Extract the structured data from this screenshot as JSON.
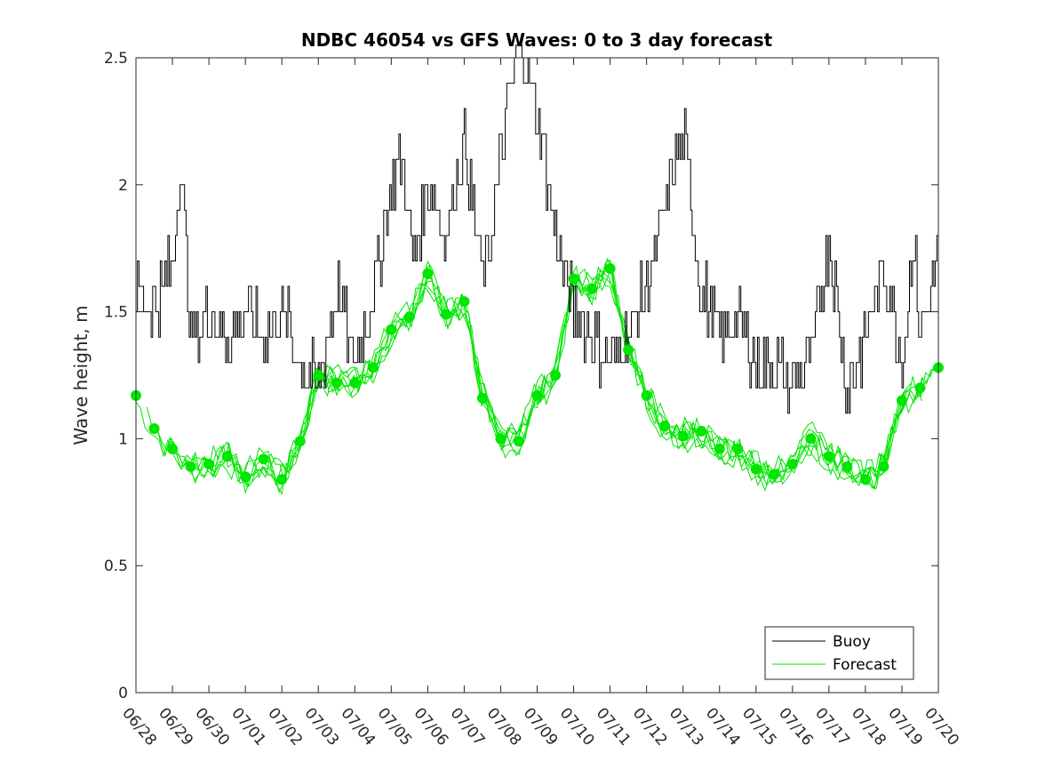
{
  "chart_data": {
    "type": "line",
    "title": "NDBC 46054 vs GFS Waves: 0 to 3 day forecast",
    "xlabel": "",
    "ylabel": "Wave height, m",
    "xlim": [
      "06/28",
      "07/20"
    ],
    "ylim": [
      0,
      2.5
    ],
    "yticks": [
      "0",
      "0.5",
      "1",
      "1.5",
      "2",
      "2.5"
    ],
    "xticks": [
      "06/28",
      "06/29",
      "06/30",
      "07/01",
      "07/02",
      "07/03",
      "07/04",
      "07/05",
      "07/06",
      "07/07",
      "07/08",
      "07/09",
      "07/10",
      "07/11",
      "07/12",
      "07/13",
      "07/14",
      "07/15",
      "07/16",
      "07/17",
      "07/18",
      "07/19",
      "07/20"
    ],
    "grid": false,
    "legend": {
      "placement": "bottom-right",
      "entries": [
        "Buoy",
        "Forecast"
      ]
    },
    "colors": {
      "buoy": "#000000",
      "forecast": "#00e600",
      "axis": "#262626"
    },
    "series": [
      {
        "name": "Buoy",
        "x_days_from_0628": [
          0,
          0.5,
          1,
          1.2,
          1.5,
          2,
          2.5,
          3,
          3.5,
          4,
          4.5,
          5,
          5.5,
          6,
          6.5,
          7,
          7.3,
          7.6,
          8,
          8.5,
          9,
          9.5,
          10,
          10.5,
          11,
          11.5,
          12,
          12.5,
          13,
          13.5,
          14,
          14.5,
          15,
          15.5,
          16,
          16.5,
          17,
          17.5,
          18,
          18.5,
          19,
          19.5,
          20,
          20.5,
          21,
          21.3,
          21.5,
          21.8,
          22
        ],
        "values": [
          1.6,
          1.5,
          1.7,
          2.1,
          1.4,
          1.5,
          1.4,
          1.5,
          1.4,
          1.5,
          1.3,
          1.2,
          1.6,
          1.3,
          1.6,
          2.0,
          2.1,
          1.7,
          2.0,
          1.8,
          2.2,
          1.6,
          2.1,
          2.6,
          2.3,
          1.8,
          1.5,
          1.4,
          1.3,
          1.4,
          1.6,
          1.9,
          2.2,
          1.6,
          1.4,
          1.5,
          1.3,
          1.3,
          1.2,
          1.3,
          1.8,
          1.2,
          1.4,
          1.7,
          1.3,
          1.8,
          1.4,
          1.6,
          1.8
        ]
      },
      {
        "name": "Forecast",
        "x_days_from_0628": [
          0,
          0.5,
          1,
          1.5,
          2,
          2.5,
          3,
          3.5,
          4,
          4.5,
          5,
          5.5,
          6,
          6.5,
          7,
          7.5,
          8,
          8.5,
          9,
          9.5,
          10,
          10.5,
          11,
          11.5,
          12,
          12.5,
          13,
          13.5,
          14,
          14.5,
          15,
          15.5,
          16,
          16.5,
          17,
          17.5,
          18,
          18.5,
          19,
          19.5,
          20,
          20.5,
          21,
          21.5,
          22
        ],
        "values": [
          1.17,
          1.04,
          0.96,
          0.89,
          0.9,
          0.93,
          0.85,
          0.92,
          0.84,
          0.99,
          1.25,
          1.22,
          1.22,
          1.28,
          1.43,
          1.48,
          1.65,
          1.49,
          1.54,
          1.16,
          1.0,
          0.99,
          1.17,
          1.25,
          1.63,
          1.59,
          1.67,
          1.35,
          1.17,
          1.05,
          1.01,
          1.03,
          0.96,
          0.96,
          0.88,
          0.86,
          0.9,
          1.0,
          0.93,
          0.89,
          0.84,
          0.89,
          1.15,
          1.2,
          1.28
        ]
      }
    ]
  }
}
